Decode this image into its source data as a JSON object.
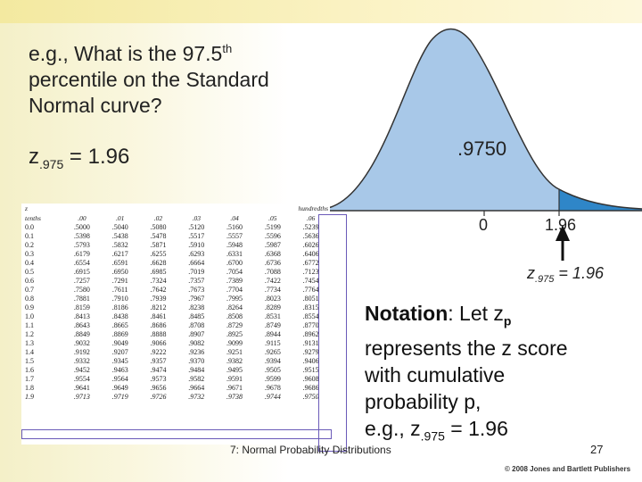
{
  "slide": {
    "title_line1": "e.g., What is the 97.5",
    "title_sup": "th",
    "title_line2": "percentile on the Standard",
    "title_line3": "Normal curve?",
    "z_label": "z",
    "z_sub": ".975",
    "z_value": " = 1.96",
    "notation_bold": "Notation",
    "notation_text1": ": Let z",
    "notation_sub_p": "p",
    "notation_text2": "represents the z score",
    "notation_text3": "with cumulative",
    "notation_text4": "probability p,",
    "notation_text5": "e.g., z",
    "notation_sub2": ".975",
    "notation_text6": " = 1.96",
    "footer": "7: Normal Probability Distributions",
    "page_number": "27",
    "copyright": "© 2008 Jones and Bartlett Publishers"
  },
  "curve": {
    "area_label": ".9750",
    "zero_label": "0",
    "z_label": "1.96",
    "annot_z": "z",
    "annot_sub": ".975",
    "annot_value": " = 1.96",
    "fill_color": "#a8c8e8",
    "tail_color": "#2f86c8"
  },
  "table": {
    "corner_label": "z",
    "tenths_label": "tenths",
    "hundredths_label": "hundredths",
    "columns": [
      ".00",
      ".01",
      ".02",
      ".03",
      ".04",
      ".05",
      ".06"
    ],
    "rows": [
      [
        "0.0",
        ".5000",
        ".5040",
        ".5080",
        ".5120",
        ".5160",
        ".5199",
        ".5239"
      ],
      [
        "0.1",
        ".5398",
        ".5438",
        ".5478",
        ".5517",
        ".5557",
        ".5596",
        ".5636"
      ],
      [
        "0.2",
        ".5793",
        ".5832",
        ".5871",
        ".5910",
        ".5948",
        ".5987",
        ".6026"
      ],
      [
        "0.3",
        ".6179",
        ".6217",
        ".6255",
        ".6293",
        ".6331",
        ".6368",
        ".6406"
      ],
      [
        "0.4",
        ".6554",
        ".6591",
        ".6628",
        ".6664",
        ".6700",
        ".6736",
        ".6772"
      ],
      [
        "0.5",
        ".6915",
        ".6950",
        ".6985",
        ".7019",
        ".7054",
        ".7088",
        ".7123"
      ],
      [
        "0.6",
        ".7257",
        ".7291",
        ".7324",
        ".7357",
        ".7389",
        ".7422",
        ".7454"
      ],
      [
        "0.7",
        ".7580",
        ".7611",
        ".7642",
        ".7673",
        ".7704",
        ".7734",
        ".7764"
      ],
      [
        "0.8",
        ".7881",
        ".7910",
        ".7939",
        ".7967",
        ".7995",
        ".8023",
        ".8051"
      ],
      [
        "0.9",
        ".8159",
        ".8186",
        ".8212",
        ".8238",
        ".8264",
        ".8289",
        ".8315"
      ],
      [
        "1.0",
        ".8413",
        ".8438",
        ".8461",
        ".8485",
        ".8508",
        ".8531",
        ".8554"
      ],
      [
        "1.1",
        ".8643",
        ".8665",
        ".8686",
        ".8708",
        ".8729",
        ".8749",
        ".8770"
      ],
      [
        "1.2",
        ".8849",
        ".8869",
        ".8888",
        ".8907",
        ".8925",
        ".8944",
        ".8962"
      ],
      [
        "1.3",
        ".9032",
        ".9049",
        ".9066",
        ".9082",
        ".9099",
        ".9115",
        ".9131"
      ],
      [
        "1.4",
        ".9192",
        ".9207",
        ".9222",
        ".9236",
        ".9251",
        ".9265",
        ".9279"
      ],
      [
        "1.5",
        ".9332",
        ".9345",
        ".9357",
        ".9370",
        ".9382",
        ".9394",
        ".9406"
      ],
      [
        "1.6",
        ".9452",
        ".9463",
        ".9474",
        ".9484",
        ".9495",
        ".9505",
        ".9515"
      ],
      [
        "1.7",
        ".9554",
        ".9564",
        ".9573",
        ".9582",
        ".9591",
        ".9599",
        ".9608"
      ],
      [
        "1.8",
        ".9641",
        ".9649",
        ".9656",
        ".9664",
        ".9671",
        ".9678",
        ".9686"
      ],
      [
        "1.9",
        ".9713",
        ".9719",
        ".9726",
        ".9732",
        ".9738",
        ".9744",
        ".9750"
      ]
    ]
  }
}
